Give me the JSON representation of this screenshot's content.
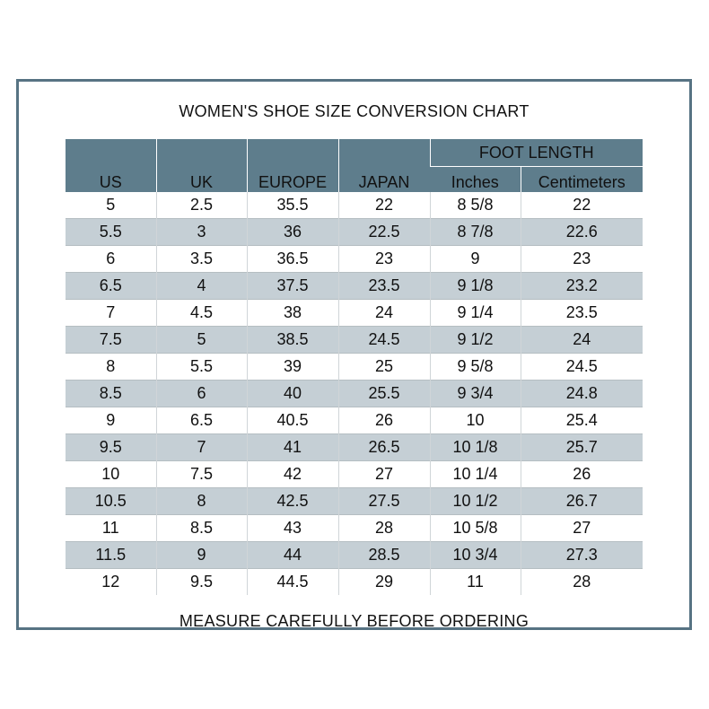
{
  "page": {
    "title": "WOMEN'S SHOE SIZE CONVERSION CHART",
    "footer_note": "MEASURE CAREFULLY BEFORE ORDERING"
  },
  "colors": {
    "header_bg": "#5e7d8c",
    "stripe_bg": "#c5cfd5",
    "frame_border": "#577383",
    "header_text": "#ffffff",
    "body_text": "#111111"
  },
  "table": {
    "group_header": "FOOT LENGTH",
    "columns": [
      "US",
      "UK",
      "EUROPE",
      "JAPAN"
    ],
    "foot_length_subcolumns": [
      "Inches",
      "Centimeters"
    ],
    "rows": [
      [
        "5",
        "2.5",
        "35.5",
        "22",
        "8 5/8",
        "22"
      ],
      [
        "5.5",
        "3",
        "36",
        "22.5",
        "8 7/8",
        "22.6"
      ],
      [
        "6",
        "3.5",
        "36.5",
        "23",
        "9",
        "23"
      ],
      [
        "6.5",
        "4",
        "37.5",
        "23.5",
        "9 1/8",
        "23.2"
      ],
      [
        "7",
        "4.5",
        "38",
        "24",
        "9 1/4",
        "23.5"
      ],
      [
        "7.5",
        "5",
        "38.5",
        "24.5",
        "9 1/2",
        "24"
      ],
      [
        "8",
        "5.5",
        "39",
        "25",
        "9 5/8",
        "24.5"
      ],
      [
        "8.5",
        "6",
        "40",
        "25.5",
        "9 3/4",
        "24.8"
      ],
      [
        "9",
        "6.5",
        "40.5",
        "26",
        "10",
        "25.4"
      ],
      [
        "9.5",
        "7",
        "41",
        "26.5",
        "10 1/8",
        "25.7"
      ],
      [
        "10",
        "7.5",
        "42",
        "27",
        "10 1/4",
        "26"
      ],
      [
        "10.5",
        "8",
        "42.5",
        "27.5",
        "10 1/2",
        "26.7"
      ],
      [
        "11",
        "8.5",
        "43",
        "28",
        "10 5/8",
        "27"
      ],
      [
        "11.5",
        "9",
        "44",
        "28.5",
        "10 3/4",
        "27.3"
      ],
      [
        "12",
        "9.5",
        "44.5",
        "29",
        "11",
        "28"
      ]
    ]
  }
}
